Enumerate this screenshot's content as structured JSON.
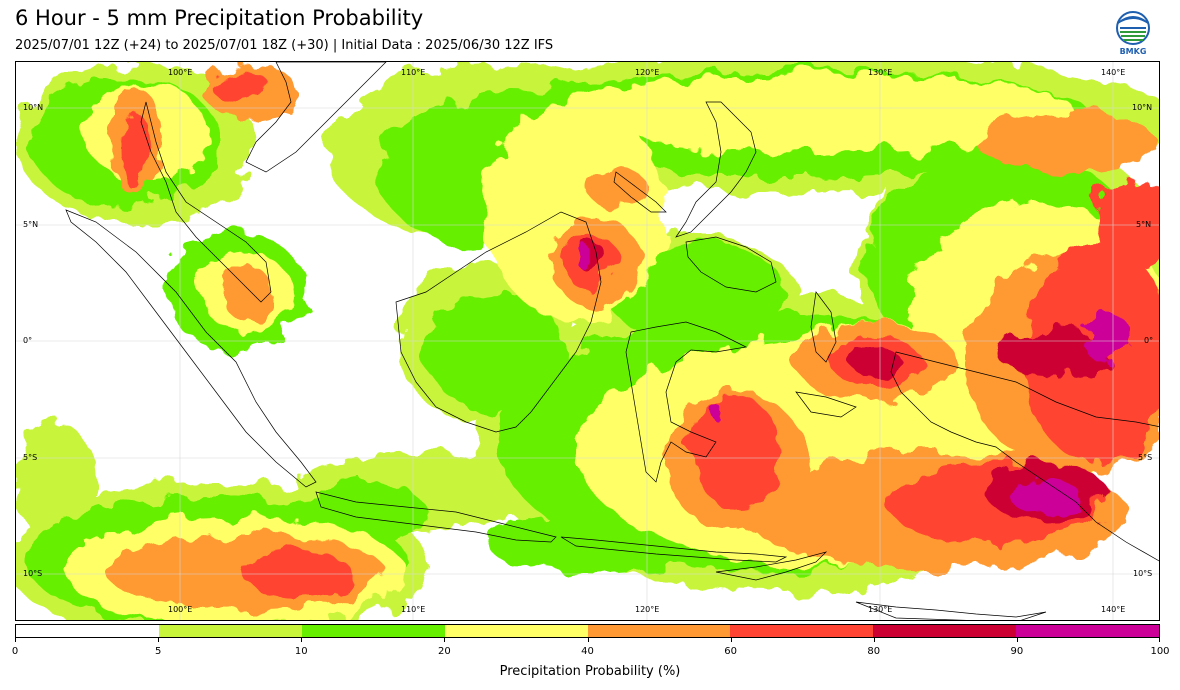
{
  "header": {
    "title": "6 Hour - 5 mm Precipitation Probability",
    "subtitle": "2025/07/01 12Z (+24) to 2025/07/01 18Z (+30) | Initial Data : 2025/06/30 12Z IFS"
  },
  "logo": {
    "text": "BMKG",
    "icon": "bmkg-logo"
  },
  "map": {
    "lon_labels_top": [
      "100°E",
      "110°E",
      "120°E",
      "130°E",
      "140°E"
    ],
    "lon_labels_bottom": [
      "100°E",
      "110°E",
      "120°E",
      "130°E",
      "140°E"
    ],
    "lat_labels_left": [
      "10°N",
      "5°N",
      "0°",
      "5°S",
      "10°S"
    ],
    "lat_labels_right": [
      "10°N",
      "5°N",
      "0°",
      "5°S",
      "10°S"
    ]
  },
  "colorbar": {
    "label": "Precipitation Probability (%)",
    "ticks": [
      "0",
      "5",
      "10",
      "20",
      "40",
      "60",
      "80",
      "90",
      "100"
    ],
    "colors": [
      "#ffffff",
      "#c8f53a",
      "#66f000",
      "#ffff66",
      "#ff9933",
      "#ff4433",
      "#cc0033",
      "#cc0099"
    ]
  }
}
